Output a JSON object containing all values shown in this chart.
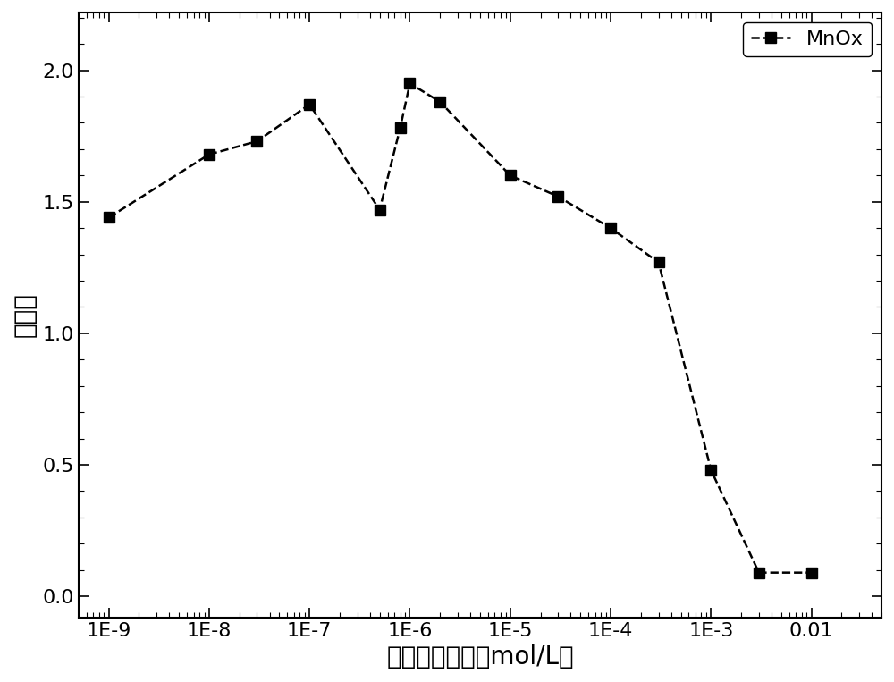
{
  "x_values": [
    1e-09,
    1e-08,
    3e-08,
    1e-07,
    5e-07,
    8e-07,
    1e-06,
    2e-06,
    1e-05,
    3e-05,
    0.0001,
    0.0003,
    0.001,
    0.003,
    0.01
  ],
  "y_values": [
    1.44,
    1.68,
    1.73,
    1.87,
    1.47,
    1.78,
    1.95,
    1.88,
    1.6,
    1.52,
    1.4,
    1.27,
    0.48,
    0.09,
    0.09
  ],
  "xlabel": "过氧化氢浓度（mol/L）",
  "ylabel": "吸收値",
  "legend_label": "MnOx",
  "line_color": "#000000",
  "marker": "s",
  "marker_size": 8,
  "line_width": 1.8,
  "line_style": "--",
  "ylim": [
    -0.08,
    2.22
  ],
  "yticks": [
    0.0,
    0.5,
    1.0,
    1.5,
    2.0
  ],
  "background_color": "#ffffff",
  "label_fontsize": 20,
  "tick_fontsize": 16,
  "legend_fontsize": 16
}
